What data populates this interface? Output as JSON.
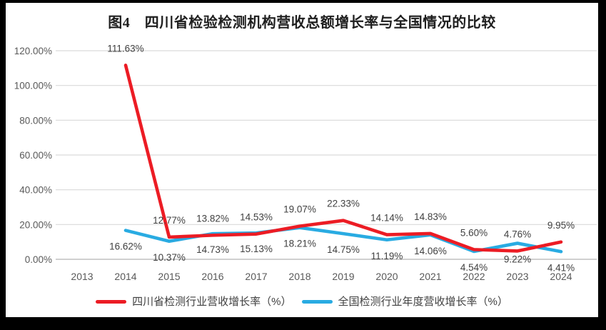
{
  "chart_data": {
    "type": "line",
    "title": "图4　四川省检验检测机构营收总额增长率与全国情况的比较",
    "categories": [
      "2013",
      "2014",
      "2015",
      "2016",
      "2017",
      "2018",
      "2019",
      "2020",
      "2021",
      "2022",
      "2023",
      "2024"
    ],
    "series": [
      {
        "id": "sichuan",
        "name": "四川省检测行业营收增长率（%）",
        "color": "#EC1C24",
        "label_position": "above",
        "values": [
          null,
          111.63,
          12.77,
          13.82,
          14.53,
          19.07,
          22.33,
          14.14,
          14.83,
          5.6,
          4.76,
          9.95
        ]
      },
      {
        "id": "national",
        "name": "全国检测行业年度营收增长率（%）",
        "color": "#29ABE2",
        "label_position": "below",
        "values": [
          null,
          16.62,
          10.37,
          14.73,
          15.13,
          18.21,
          14.75,
          11.19,
          14.06,
          4.54,
          9.22,
          4.41
        ]
      }
    ],
    "ylim": [
      0,
      120
    ],
    "ytick_labels": [
      "0.00%",
      "20.00%",
      "40.00%",
      "60.00%",
      "80.00%",
      "100.00%",
      "120.00%"
    ],
    "xlabel": "",
    "ylabel": "",
    "grid": true,
    "legend_position": "bottom",
    "label_format": "percent-2dp",
    "axis_text_color": "#595959",
    "data_label_color": "#404040",
    "gridline_color": "#D9D9D9"
  }
}
